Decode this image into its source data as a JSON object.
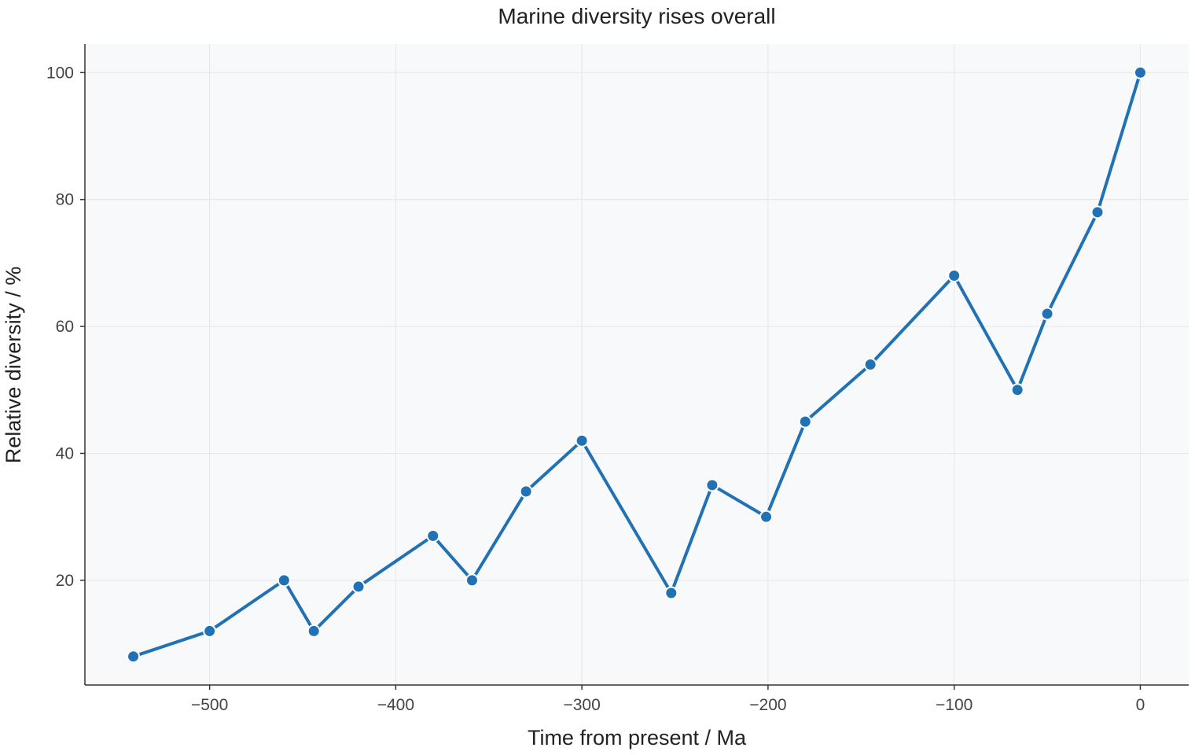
{
  "chart_data": {
    "type": "line",
    "title": "Marine diversity rises overall",
    "xlabel": "Time from present / Ma",
    "ylabel": "Relative diversity / %",
    "xlim": [
      -567,
      26
    ],
    "ylim": [
      3.5,
      104.5
    ],
    "xticks": [
      -500,
      -400,
      -300,
      -200,
      -100,
      0
    ],
    "xtick_labels": [
      "−500",
      "−400",
      "−300",
      "−200",
      "−100",
      "0"
    ],
    "yticks": [
      20,
      40,
      60,
      80,
      100
    ],
    "ytick_labels": [
      "20",
      "40",
      "60",
      "80",
      "100"
    ],
    "grid": true,
    "series": [
      {
        "color": "#2171b5",
        "x": [
          -541,
          -500,
          -460,
          -444,
          -420,
          -380,
          -359,
          -330,
          -300,
          -252,
          -230,
          -201,
          -180,
          -145,
          -100,
          -66,
          -50,
          -23,
          0
        ],
        "y": [
          8,
          12,
          20,
          12,
          19,
          27,
          20,
          34,
          42,
          18,
          35,
          30,
          45,
          54,
          68,
          50,
          62,
          78,
          100
        ]
      }
    ],
    "colors": {
      "plot_background": "#f8f9fa",
      "line": "#2171b5",
      "marker_edge": "#ffffff"
    }
  }
}
